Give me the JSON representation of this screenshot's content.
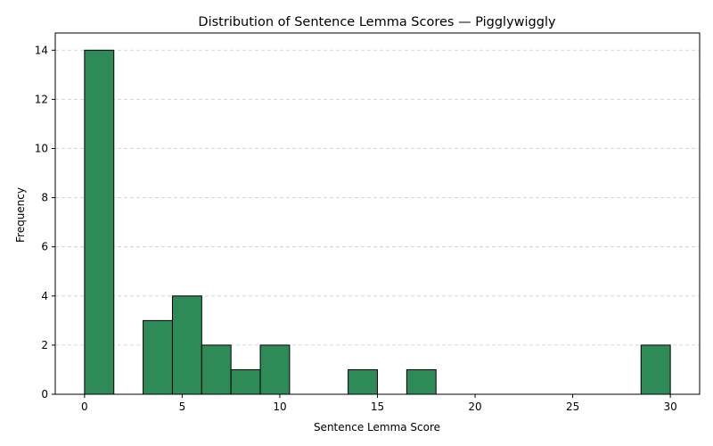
{
  "chart_data": {
    "type": "bar",
    "title": "Distribution of Sentence Lemma Scores — Pigglywiggly",
    "xlabel": "Sentence Lemma Score",
    "ylabel": "Frequency",
    "xlim": [
      -1.5,
      31.5
    ],
    "ylim": [
      0,
      14.7
    ],
    "x_ticks": [
      0,
      5,
      10,
      15,
      20,
      25,
      30
    ],
    "y_ticks": [
      0,
      2,
      4,
      6,
      8,
      10,
      12,
      14
    ],
    "grid": "y",
    "bar_color": "#2e8b57",
    "edge_color": "#000000",
    "bins": [
      {
        "start": 0.0,
        "end": 1.5,
        "count": 14
      },
      {
        "start": 3.0,
        "end": 4.5,
        "count": 3
      },
      {
        "start": 4.5,
        "end": 6.0,
        "count": 4
      },
      {
        "start": 6.0,
        "end": 7.5,
        "count": 2
      },
      {
        "start": 7.5,
        "end": 9.0,
        "count": 1
      },
      {
        "start": 9.0,
        "end": 10.5,
        "count": 2
      },
      {
        "start": 13.5,
        "end": 15.0,
        "count": 1
      },
      {
        "start": 16.5,
        "end": 18.0,
        "count": 1
      },
      {
        "start": 28.5,
        "end": 30.0,
        "count": 2
      }
    ]
  }
}
